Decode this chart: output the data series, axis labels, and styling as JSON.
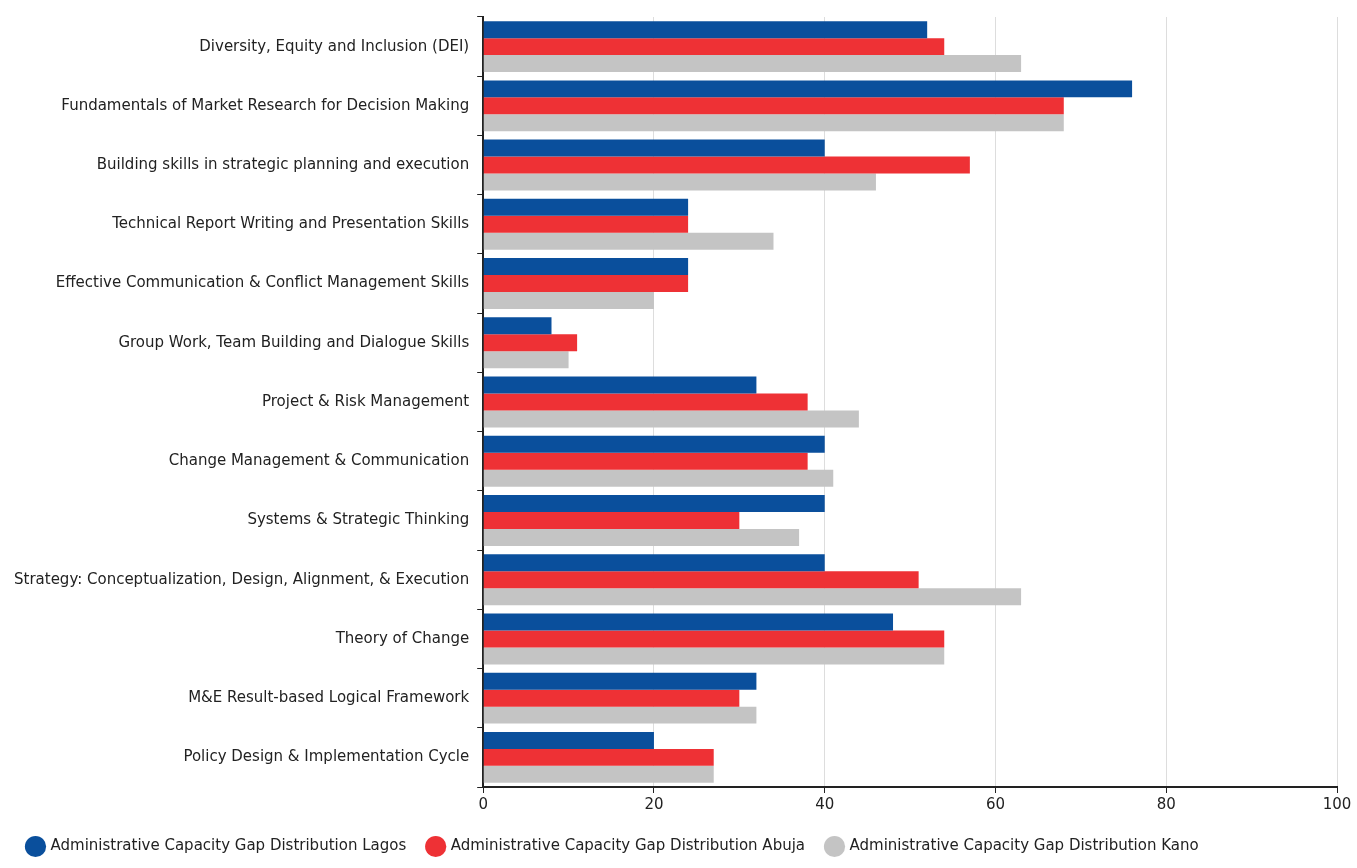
{
  "chart_data": {
    "type": "bar",
    "orientation": "horizontal",
    "categories": [
      "Diversity, Equity and Inclusion (DEI)",
      "Fundamentals of Market Research for Decision Making",
      "Building skills in strategic planning and execution",
      "Technical Report Writing and Presentation Skills",
      "Effective Communication & Conflict Management Skills",
      "Group Work, Team Building and Dialogue Skills",
      "Project & Risk Management",
      "Change Management & Communication",
      "Systems & Strategic Thinking",
      "Strategy: Conceptualization, Design, Alignment, & Execution",
      "Theory of Change",
      "M&E Result-based Logical Framework",
      "Policy Design & Implementation Cycle"
    ],
    "series": [
      {
        "name": "Administrative Capacity Gap Distribution Lagos",
        "color": "#0a4f9c",
        "values": [
          52,
          76,
          40,
          24,
          24,
          8,
          32,
          40,
          40,
          40,
          48,
          32,
          20
        ]
      },
      {
        "name": "Administrative Capacity Gap Distribution Abuja",
        "color": "#ee3135",
        "values": [
          54,
          68,
          57,
          24,
          24,
          11,
          38,
          38,
          30,
          51,
          54,
          30,
          27
        ]
      },
      {
        "name": "Administrative Capacity Gap Distribution Kano",
        "color": "#c4c4c4",
        "values": [
          63,
          68,
          46,
          34,
          20,
          10,
          44,
          41,
          37,
          63,
          54,
          32,
          27
        ]
      }
    ],
    "xlim": [
      0,
      100
    ],
    "xticks": [
      0,
      20,
      40,
      60,
      80,
      100
    ],
    "grid": "x",
    "legend": "bottom left"
  }
}
